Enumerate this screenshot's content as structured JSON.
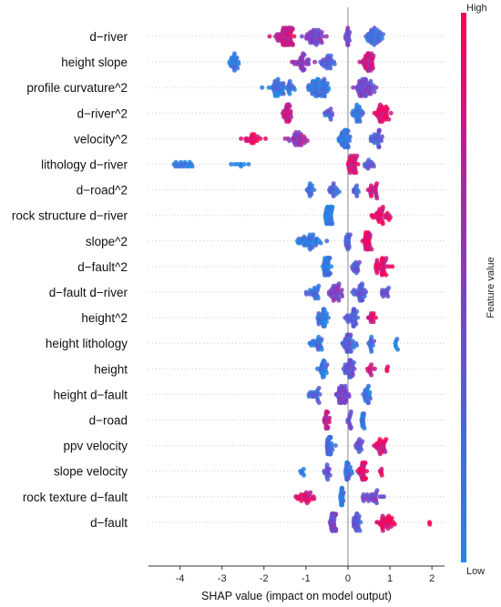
{
  "chart_data": {
    "type": "scatter",
    "subtype": "shap-beeswarm",
    "title": "",
    "xlabel": "SHAP value (impact on model output)",
    "ylabel": "",
    "xlim": [
      -4.75,
      2.3
    ],
    "xticks": [
      -4,
      -3,
      -2,
      -1,
      0,
      1,
      2
    ],
    "zero_line": true,
    "grid": false,
    "legend": {
      "type": "colorbar",
      "title": "Feature value",
      "high_label": "High",
      "low_label": "Low",
      "placement": "right",
      "low_color": "#1e88e5",
      "high_color": "#ff0052"
    },
    "features": [
      {
        "name": "d−river",
        "range": [
          -2.4,
          1.2
        ],
        "clusters": [
          {
            "c": -1.5,
            "w": 0.55,
            "n": 60,
            "v": 0.78
          },
          {
            "c": -0.8,
            "w": 0.5,
            "n": 40,
            "v": 0.5
          },
          {
            "c": 0.0,
            "w": 0.2,
            "n": 15,
            "v": 0.4
          },
          {
            "c": 0.6,
            "w": 0.4,
            "n": 35,
            "v": 0.2
          }
        ]
      },
      {
        "name": "height slope",
        "range": [
          -2.9,
          0.9
        ],
        "clusters": [
          {
            "c": -2.7,
            "w": 0.22,
            "n": 22,
            "v": 0.1
          },
          {
            "c": -1.1,
            "w": 0.5,
            "n": 30,
            "v": 0.55
          },
          {
            "c": -0.5,
            "w": 0.35,
            "n": 25,
            "v": 0.3
          },
          {
            "c": 0.5,
            "w": 0.3,
            "n": 40,
            "v": 0.8
          }
        ]
      },
      {
        "name": "profile curvature^2",
        "range": [
          -2.5,
          1.0
        ],
        "clusters": [
          {
            "c": -1.6,
            "w": 0.7,
            "n": 45,
            "v": 0.15
          },
          {
            "c": -0.7,
            "w": 0.5,
            "n": 55,
            "v": 0.12
          },
          {
            "c": 0.4,
            "w": 0.5,
            "n": 50,
            "v": 0.45
          }
        ]
      },
      {
        "name": "d−river^2",
        "range": [
          -1.6,
          1.2
        ],
        "clusters": [
          {
            "c": -1.45,
            "w": 0.2,
            "n": 30,
            "v": 0.8
          },
          {
            "c": -0.5,
            "w": 0.3,
            "n": 12,
            "v": 0.3
          },
          {
            "c": 0.2,
            "w": 0.3,
            "n": 25,
            "v": 0.1
          },
          {
            "c": 0.8,
            "w": 0.35,
            "n": 35,
            "v": 0.9
          }
        ]
      },
      {
        "name": "velocity^2",
        "range": [
          -3.0,
          1.1
        ],
        "clusters": [
          {
            "c": -2.3,
            "w": 0.6,
            "n": 20,
            "v": 0.92
          },
          {
            "c": -1.2,
            "w": 0.6,
            "n": 30,
            "v": 0.6
          },
          {
            "c": -0.1,
            "w": 0.3,
            "n": 35,
            "v": 0.15
          },
          {
            "c": 0.7,
            "w": 0.35,
            "n": 25,
            "v": 0.3
          }
        ]
      },
      {
        "name": "lithology d−river",
        "range": [
          -4.5,
          1.0
        ],
        "clusters": [
          {
            "c": -3.9,
            "w": 0.55,
            "n": 18,
            "v": 0.05
          },
          {
            "c": -2.6,
            "w": 0.4,
            "n": 8,
            "v": 0.05
          },
          {
            "c": 0.1,
            "w": 0.25,
            "n": 30,
            "v": 0.85
          },
          {
            "c": 0.5,
            "w": 0.2,
            "n": 12,
            "v": 0.3
          }
        ]
      },
      {
        "name": "d−road^2",
        "range": [
          -1.1,
          0.9
        ],
        "clusters": [
          {
            "c": -0.9,
            "w": 0.15,
            "n": 14,
            "v": 0.15
          },
          {
            "c": -0.35,
            "w": 0.25,
            "n": 16,
            "v": 0.2
          },
          {
            "c": 0.2,
            "w": 0.15,
            "n": 10,
            "v": 0.3
          },
          {
            "c": 0.6,
            "w": 0.25,
            "n": 18,
            "v": 0.85
          }
        ]
      },
      {
        "name": "rock structure d−river",
        "range": [
          -0.7,
          1.25
        ],
        "clusters": [
          {
            "c": -0.45,
            "w": 0.18,
            "n": 35,
            "v": 0.1
          },
          {
            "c": 0.8,
            "w": 0.4,
            "n": 30,
            "v": 0.9
          }
        ]
      },
      {
        "name": "slope^2",
        "range": [
          -1.6,
          0.75
        ],
        "clusters": [
          {
            "c": -0.9,
            "w": 0.6,
            "n": 40,
            "v": 0.1
          },
          {
            "c": 0.0,
            "w": 0.15,
            "n": 15,
            "v": 0.3
          },
          {
            "c": 0.45,
            "w": 0.2,
            "n": 30,
            "v": 0.9
          }
        ]
      },
      {
        "name": "d−fault^2",
        "range": [
          -1.2,
          1.25
        ],
        "clusters": [
          {
            "c": -0.5,
            "w": 0.25,
            "n": 40,
            "v": 0.1
          },
          {
            "c": 0.2,
            "w": 0.2,
            "n": 15,
            "v": 0.3
          },
          {
            "c": 0.8,
            "w": 0.4,
            "n": 35,
            "v": 0.9
          }
        ]
      },
      {
        "name": "d−fault d−river",
        "range": [
          -1.2,
          1.25
        ],
        "clusters": [
          {
            "c": -0.8,
            "w": 0.3,
            "n": 20,
            "v": 0.2
          },
          {
            "c": -0.3,
            "w": 0.3,
            "n": 30,
            "v": 0.5
          },
          {
            "c": 0.3,
            "w": 0.3,
            "n": 30,
            "v": 0.3
          },
          {
            "c": 0.9,
            "w": 0.3,
            "n": 12,
            "v": 0.4
          }
        ]
      },
      {
        "name": "height^2",
        "range": [
          -0.95,
          0.75
        ],
        "clusters": [
          {
            "c": -0.6,
            "w": 0.25,
            "n": 30,
            "v": 0.15
          },
          {
            "c": 0.1,
            "w": 0.25,
            "n": 35,
            "v": 0.3
          },
          {
            "c": 0.55,
            "w": 0.15,
            "n": 12,
            "v": 0.85
          }
        ]
      },
      {
        "name": "height lithology",
        "range": [
          -1.1,
          1.25
        ],
        "clusters": [
          {
            "c": -0.7,
            "w": 0.35,
            "n": 20,
            "v": 0.15
          },
          {
            "c": 0.0,
            "w": 0.3,
            "n": 35,
            "v": 0.3
          },
          {
            "c": 0.55,
            "w": 0.2,
            "n": 12,
            "v": 0.2
          },
          {
            "c": 1.15,
            "w": 0.1,
            "n": 6,
            "v": 0.05
          }
        ]
      },
      {
        "name": "height",
        "range": [
          -0.85,
          1.0
        ],
        "clusters": [
          {
            "c": -0.6,
            "w": 0.2,
            "n": 22,
            "v": 0.15
          },
          {
            "c": 0.05,
            "w": 0.25,
            "n": 35,
            "v": 0.35
          },
          {
            "c": 0.55,
            "w": 0.15,
            "n": 10,
            "v": 0.85
          },
          {
            "c": 0.95,
            "w": 0.05,
            "n": 3,
            "v": 0.95
          }
        ]
      },
      {
        "name": "height d−fault",
        "range": [
          -1.1,
          0.7
        ],
        "clusters": [
          {
            "c": -0.8,
            "w": 0.3,
            "n": 18,
            "v": 0.25
          },
          {
            "c": -0.1,
            "w": 0.3,
            "n": 40,
            "v": 0.45
          },
          {
            "c": 0.45,
            "w": 0.2,
            "n": 20,
            "v": 0.15
          }
        ]
      },
      {
        "name": "d−road",
        "range": [
          -0.7,
          0.5
        ],
        "clusters": [
          {
            "c": -0.5,
            "w": 0.12,
            "n": 22,
            "v": 0.75
          },
          {
            "c": 0.05,
            "w": 0.12,
            "n": 12,
            "v": 0.4
          },
          {
            "c": 0.35,
            "w": 0.12,
            "n": 15,
            "v": 0.1
          }
        ]
      },
      {
        "name": "ppv velocity",
        "range": [
          -0.7,
          1.3
        ],
        "clusters": [
          {
            "c": -0.45,
            "w": 0.2,
            "n": 35,
            "v": 0.2
          },
          {
            "c": 0.25,
            "w": 0.15,
            "n": 15,
            "v": 0.4
          },
          {
            "c": 0.75,
            "w": 0.35,
            "n": 25,
            "v": 0.85
          }
        ]
      },
      {
        "name": "slope velocity",
        "range": [
          -1.2,
          0.95
        ],
        "clusters": [
          {
            "c": -1.1,
            "w": 0.1,
            "n": 6,
            "v": 0.1
          },
          {
            "c": -0.5,
            "w": 0.15,
            "n": 14,
            "v": 0.3
          },
          {
            "c": 0.0,
            "w": 0.15,
            "n": 25,
            "v": 0.2
          },
          {
            "c": 0.35,
            "w": 0.2,
            "n": 30,
            "v": 0.85
          },
          {
            "c": 0.8,
            "w": 0.1,
            "n": 5,
            "v": 0.8
          }
        ]
      },
      {
        "name": "rock texture d−fault",
        "range": [
          -1.4,
          1.25
        ],
        "clusters": [
          {
            "c": -1.0,
            "w": 0.5,
            "n": 25,
            "v": 0.85
          },
          {
            "c": -0.15,
            "w": 0.08,
            "n": 20,
            "v": 0.1
          },
          {
            "c": 0.6,
            "w": 0.5,
            "n": 25,
            "v": 0.45
          }
        ]
      },
      {
        "name": "d−fault",
        "range": [
          -0.55,
          2.0
        ],
        "clusters": [
          {
            "c": -0.35,
            "w": 0.15,
            "n": 45,
            "v": 0.45
          },
          {
            "c": 0.2,
            "w": 0.2,
            "n": 25,
            "v": 0.35
          },
          {
            "c": 0.9,
            "w": 0.5,
            "n": 30,
            "v": 0.9
          },
          {
            "c": 1.95,
            "w": 0.03,
            "n": 2,
            "v": 0.95
          }
        ]
      }
    ]
  }
}
